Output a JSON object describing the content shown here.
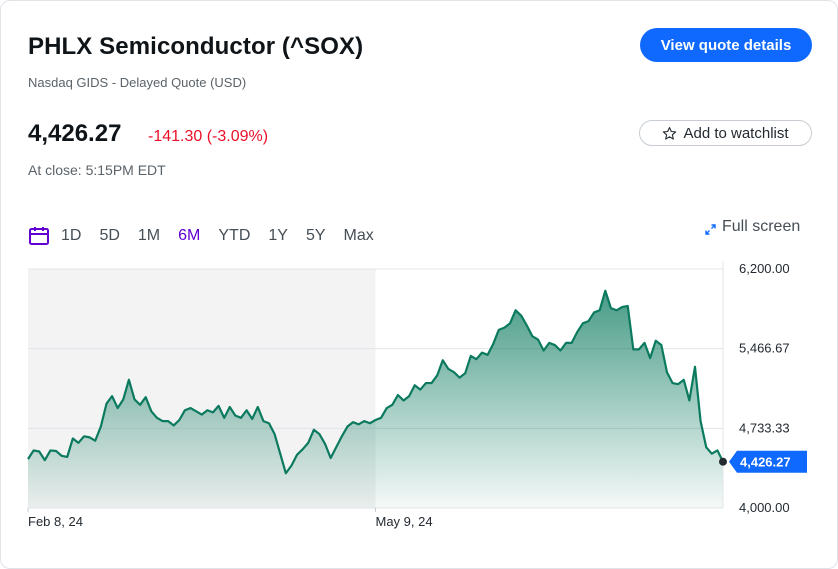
{
  "header": {
    "title": "PHLX Semiconductor (^SOX)",
    "subtitle": "Nasdaq GIDS - Delayed Quote (USD)",
    "view_quote_label": "View quote details"
  },
  "quote": {
    "price": "4,426.27",
    "change": "-141.30 (-3.09%)",
    "close_time": "At close: 5:15PM EDT",
    "watchlist_label": "Add to watchlist"
  },
  "range": {
    "buttons": [
      "1D",
      "5D",
      "1M",
      "6M",
      "YTD",
      "1Y",
      "5Y",
      "Max"
    ],
    "active": "6M",
    "fullscreen_label": "Full screen"
  },
  "colors": {
    "accent": "#0f69ff",
    "negative": "#eb0f29",
    "active_range": "#6001d2",
    "line": "#0b7a5f"
  },
  "icons": {
    "calendar": "calendar-icon",
    "star": "star-icon",
    "expand": "expand-icon"
  },
  "chart_data": {
    "type": "area",
    "title": "",
    "ylim": [
      4000,
      6200
    ],
    "yticks": [
      "6,200.00",
      "5,466.67",
      "4,733.33",
      "4,000.00"
    ],
    "ytick_values": [
      6200,
      5466.67,
      4733.33,
      4000
    ],
    "xticks": [
      "Feb 8, 24",
      "May 9, 24"
    ],
    "xtick_index": [
      0,
      62
    ],
    "last_value_label": "4,426.27",
    "series": [
      {
        "values": [
          4450,
          4530,
          4520,
          4440,
          4530,
          4525,
          4480,
          4470,
          4640,
          4600,
          4660,
          4650,
          4620,
          4750,
          4960,
          5030,
          4920,
          5000,
          5180,
          5000,
          4950,
          5020,
          4890,
          4830,
          4800,
          4800,
          4760,
          4810,
          4900,
          4920,
          4890,
          4860,
          4900,
          4880,
          4940,
          4830,
          4930,
          4850,
          4830,
          4900,
          4820,
          4930,
          4800,
          4780,
          4680,
          4500,
          4320,
          4390,
          4490,
          4540,
          4600,
          4720,
          4680,
          4590,
          4460,
          4560,
          4660,
          4750,
          4790,
          4770,
          4800,
          4780,
          4810,
          4830,
          4920,
          4950,
          5040,
          4990,
          5030,
          5130,
          5090,
          5150,
          5150,
          5220,
          5360,
          5280,
          5250,
          5200,
          5240,
          5400,
          5370,
          5430,
          5410,
          5510,
          5640,
          5660,
          5700,
          5820,
          5770,
          5680,
          5580,
          5550,
          5450,
          5520,
          5500,
          5450,
          5520,
          5520,
          5620,
          5700,
          5720,
          5800,
          5820,
          6000,
          5840,
          5820,
          5850,
          5860,
          5460,
          5460,
          5520,
          5380,
          5540,
          5500,
          5250,
          5150,
          5140,
          5180,
          4990,
          5300,
          4800,
          4560,
          4500,
          4530,
          4426.27
        ]
      }
    ]
  }
}
